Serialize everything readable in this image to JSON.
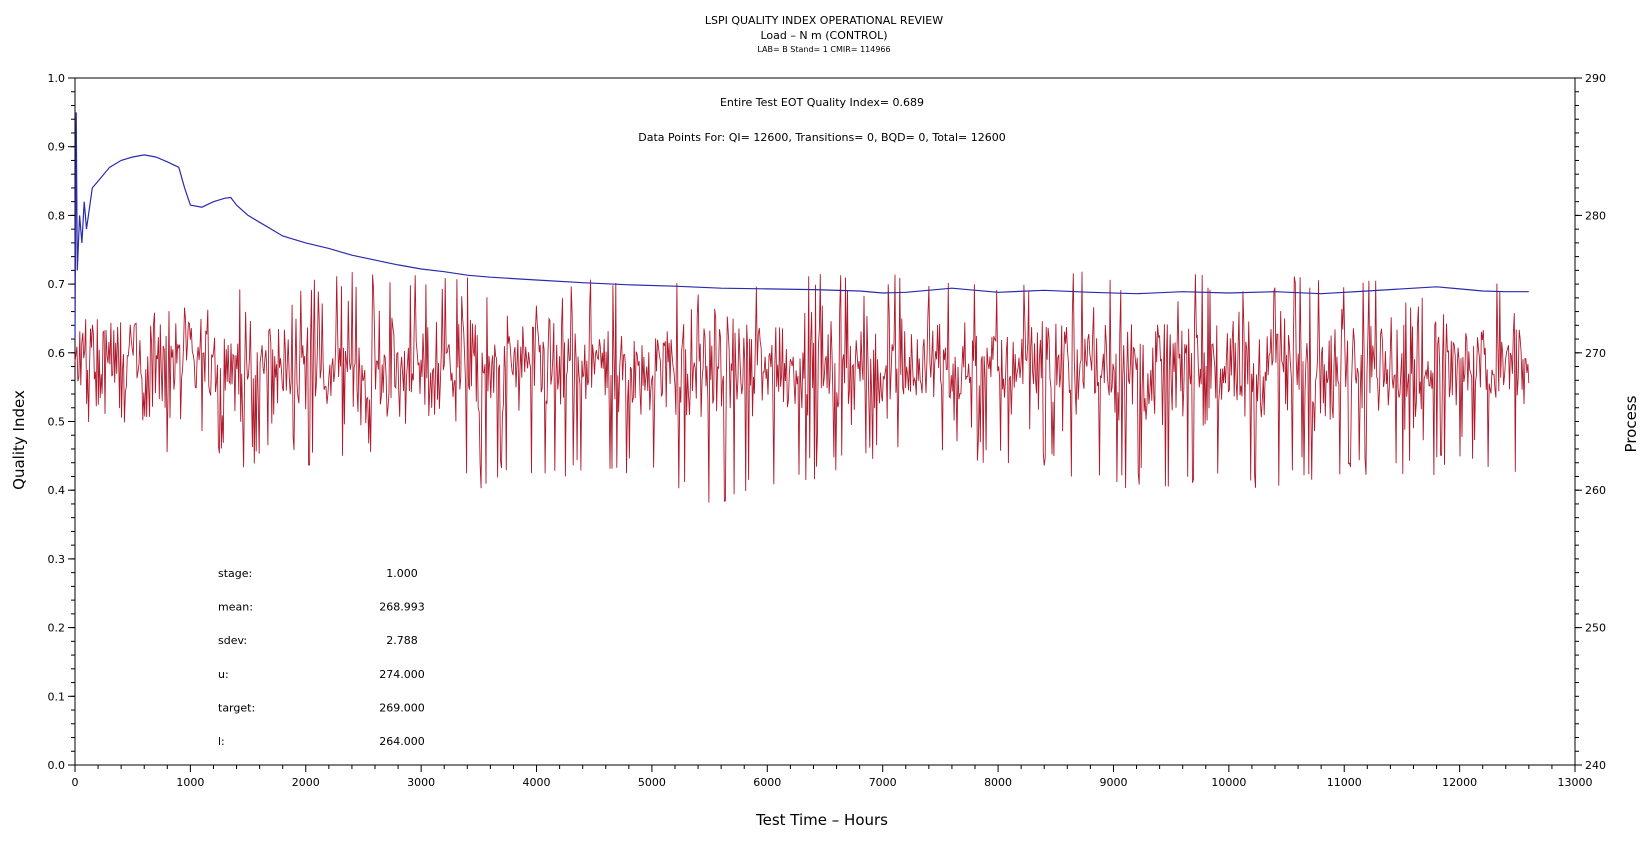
{
  "chart_data": {
    "type": "line",
    "title": "LSPI QUALITY INDEX OPERATIONAL REVIEW",
    "subtitle": "Load – N m (CONTROL)",
    "subtitle2": "LAB= B Stand= 1 CMIR= 114966",
    "xlabel": "Test Time – Hours",
    "ylabel_left": "Quality Index",
    "ylabel_right": "Process",
    "xlim": [
      0,
      13000
    ],
    "ylim_left": [
      0,
      1.0
    ],
    "ylim_right": [
      240,
      290
    ],
    "x_ticks": [
      "0",
      "1000",
      "2000",
      "3000",
      "4000",
      "5000",
      "6000",
      "7000",
      "8000",
      "9000",
      "10000",
      "11000",
      "12000",
      "13000"
    ],
    "y_left_ticks": [
      "0.0",
      "0.1",
      "0.2",
      "0.3",
      "0.4",
      "0.5",
      "0.6",
      "0.7",
      "0.8",
      "0.9",
      "1.0"
    ],
    "y_right_ticks": [
      "240",
      "250",
      "260",
      "270",
      "280",
      "290"
    ],
    "annotations": {
      "eot": "Entire Test EOT Quality Index=   0.689",
      "points": "Data Points For: QI= 12600, Transitions=     0, BQD=     0, Total= 12600"
    },
    "stats": [
      {
        "label": "stage:",
        "value": "1.000"
      },
      {
        "label": "mean:",
        "value": "268.993"
      },
      {
        "label": "sdev:",
        "value": "2.788"
      },
      {
        "label": "u:",
        "value": "274.000"
      },
      {
        "label": "target:",
        "value": "269.000"
      },
      {
        "label": "l:",
        "value": "264.000"
      }
    ],
    "series": [
      {
        "color": "#2b2bb0",
        "axis": "left",
        "x": [
          0,
          10,
          20,
          40,
          60,
          80,
          100,
          150,
          200,
          300,
          400,
          500,
          600,
          700,
          800,
          900,
          950,
          1000,
          1100,
          1200,
          1300,
          1350,
          1400,
          1500,
          1600,
          1700,
          1800,
          1900,
          2000,
          2200,
          2400,
          2600,
          2800,
          3000,
          3200,
          3400,
          3600,
          3800,
          4000,
          4400,
          4800,
          5200,
          5600,
          6000,
          6400,
          6800,
          7000,
          7200,
          7600,
          8000,
          8400,
          8800,
          9200,
          9600,
          10000,
          10400,
          10800,
          11200,
          11600,
          11800,
          12000,
          12200,
          12400,
          12600
        ],
        "y": [
          0.62,
          0.95,
          0.72,
          0.8,
          0.76,
          0.82,
          0.78,
          0.84,
          0.85,
          0.87,
          0.88,
          0.885,
          0.888,
          0.885,
          0.878,
          0.87,
          0.84,
          0.815,
          0.812,
          0.82,
          0.825,
          0.826,
          0.815,
          0.8,
          0.79,
          0.78,
          0.77,
          0.765,
          0.76,
          0.752,
          0.742,
          0.735,
          0.728,
          0.722,
          0.718,
          0.713,
          0.71,
          0.708,
          0.706,
          0.702,
          0.699,
          0.697,
          0.694,
          0.693,
          0.692,
          0.69,
          0.687,
          0.688,
          0.694,
          0.688,
          0.691,
          0.688,
          0.686,
          0.689,
          0.687,
          0.689,
          0.686,
          0.69,
          0.694,
          0.696,
          0.693,
          0.69,
          0.689,
          0.689
        ]
      },
      {
        "color": "#b01a2c",
        "axis": "right",
        "x_range": [
          0,
          12600
        ],
        "band_x": [
          0,
          500,
          900,
          1000,
          1500,
          2500,
          3500,
          4500,
          5700,
          6500,
          7500,
          9000,
          10000,
          11000,
          11700,
          12000,
          12600
        ],
        "band_min": [
          263.5,
          265.0,
          261.0,
          262.5,
          261.5,
          262.0,
          260.0,
          261.0,
          258.5,
          261.0,
          262.0,
          260.0,
          259.5,
          261.0,
          260.0,
          262.0,
          261.0
        ],
        "band_max": [
          273.0,
          272.0,
          274.0,
          273.5,
          275.0,
          276.0,
          275.5,
          276.0,
          275.0,
          276.0,
          275.5,
          276.0,
          276.0,
          275.5,
          275.0,
          276.0,
          275.5
        ],
        "mean": 268.993,
        "sdev": 2.788
      }
    ]
  }
}
